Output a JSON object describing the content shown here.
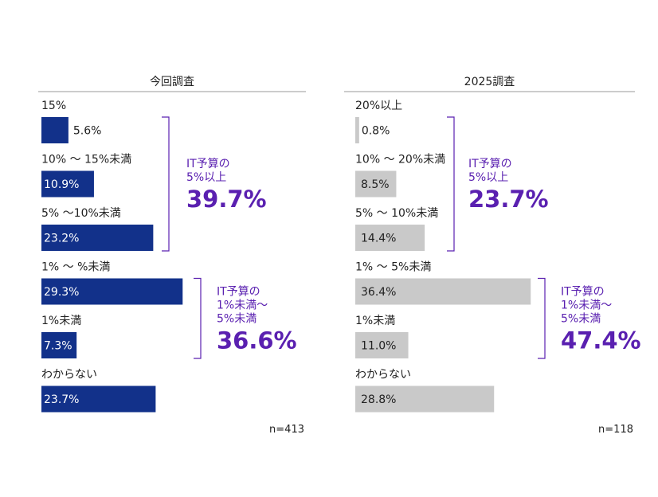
{
  "colors": {
    "current": "#12318a",
    "previous": "#c9c9c9",
    "accent": "#5a20b0",
    "rule": "#9a9a9a",
    "text": "#222222"
  },
  "chart_data": [
    {
      "type": "bar",
      "orientation": "horizontal",
      "title": "今回調査",
      "categories": [
        "15%",
        "10% 〜 15%未満",
        "5% 〜10%未満",
        "1% 〜 %未満",
        "1%未満",
        "わからない"
      ],
      "values": [
        5.6,
        10.9,
        23.2,
        29.3,
        7.3,
        23.7
      ],
      "data_labels": [
        "5.6%",
        "10.9%",
        "23.2%",
        "29.3%",
        "7.3%",
        "23.7%"
      ],
      "sample_size": "n=413",
      "groups": [
        {
          "lines": [
            "IT予算の",
            "5%以上"
          ],
          "total": "39.7%",
          "from": 0,
          "to": 2
        },
        {
          "lines": [
            "IT予算の",
            "1%未満〜",
            "5%未満"
          ],
          "total": "36.6%",
          "from": 3,
          "to": 4
        }
      ]
    },
    {
      "type": "bar",
      "orientation": "horizontal",
      "title": "2025調査",
      "categories": [
        "20%以上",
        "10% 〜 20%未満",
        "5% 〜 10%未満",
        "1% 〜 5%未満",
        "1%未満",
        "わからない"
      ],
      "values": [
        0.8,
        8.5,
        14.4,
        36.4,
        11.0,
        28.8
      ],
      "data_labels": [
        "0.8%",
        "8.5%",
        "14.4%",
        "36.4%",
        "11.0%",
        "28.8%"
      ],
      "sample_size": "n=118",
      "groups": [
        {
          "lines": [
            "IT予算の",
            "5%以上"
          ],
          "total": "23.7%",
          "from": 0,
          "to": 2
        },
        {
          "lines": [
            "IT予算の",
            "1%未満〜",
            "5%未満"
          ],
          "total": "47.4%",
          "from": 3,
          "to": 4
        }
      ]
    }
  ]
}
